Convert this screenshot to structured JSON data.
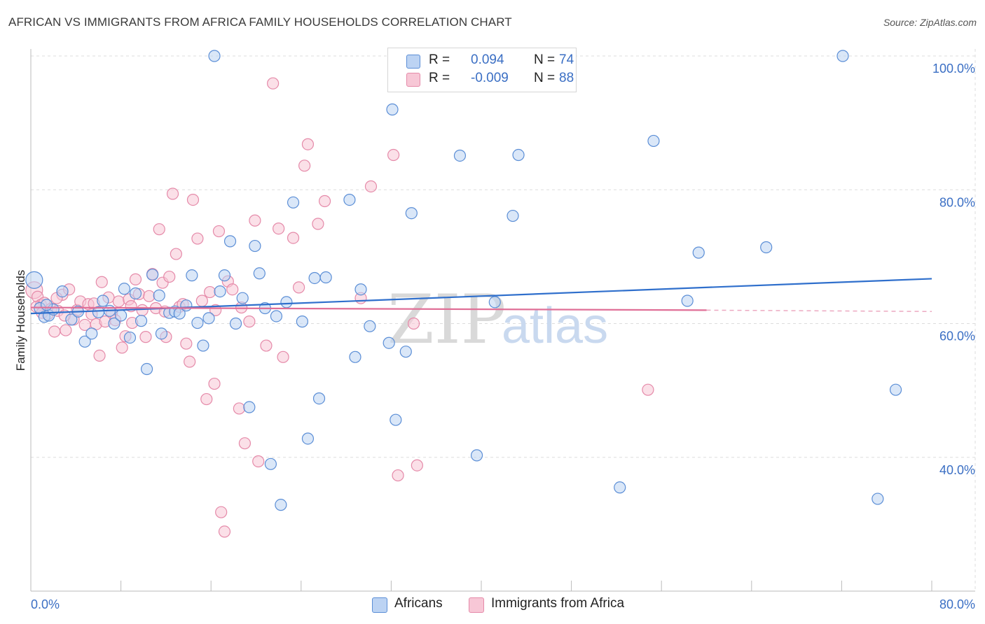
{
  "title": "AFRICAN VS IMMIGRANTS FROM AFRICA FAMILY HOUSEHOLDS CORRELATION CHART",
  "source": "Source: ZipAtlas.com",
  "colors": {
    "blue_fill": "#bcd3f3",
    "blue_stroke": "#5b8ed6",
    "blue_line": "#2f6fcc",
    "pink_fill": "#f7c7d6",
    "pink_stroke": "#e58aa9",
    "pink_line": "#e06f97",
    "grid": "#dddddd",
    "tick_text": "#3b6fc4"
  },
  "legend": {
    "r_label": "R =",
    "n_label": "N =",
    "series": [
      {
        "name": "Africans",
        "r": "0.094",
        "n": "74"
      },
      {
        "name": "Immigrants from Africa",
        "r": "-0.009",
        "n": "88"
      }
    ]
  },
  "watermark": {
    "zip": "ZIP",
    "atlas": "atlas"
  },
  "chart_data": {
    "type": "scatter",
    "title": "AFRICAN VS IMMIGRANTS FROM AFRICA FAMILY HOUSEHOLDS CORRELATION CHART",
    "xlabel": "",
    "ylabel": "Family Households",
    "xlim": [
      0,
      80
    ],
    "ylim": [
      20,
      101
    ],
    "x_tick_labels": [
      "0.0%",
      "80.0%"
    ],
    "y_ticks": [
      40,
      60,
      80,
      100
    ],
    "y_tick_labels": [
      "40.0%",
      "60.0%",
      "80.0%",
      "100.0%"
    ],
    "grid": true,
    "legend_position": "top-center",
    "series": [
      {
        "name": "Africans",
        "trend": {
          "x": [
            0,
            80
          ],
          "y": [
            61.5,
            66.7
          ],
          "style": "solid"
        },
        "points": [
          [
            0.3,
            66.5
          ],
          [
            0.8,
            62.3
          ],
          [
            1.2,
            61.0
          ],
          [
            1.6,
            61.2
          ],
          [
            2.0,
            62.1
          ],
          [
            2.8,
            64.8
          ],
          [
            3.6,
            60.6
          ],
          [
            4.2,
            61.8
          ],
          [
            4.8,
            57.3
          ],
          [
            5.4,
            58.5
          ],
          [
            6.0,
            61.7
          ],
          [
            6.4,
            63.4
          ],
          [
            7.0,
            61.9
          ],
          [
            7.4,
            60.0
          ],
          [
            8.0,
            61.2
          ],
          [
            8.3,
            65.2
          ],
          [
            8.8,
            57.9
          ],
          [
            9.3,
            64.5
          ],
          [
            9.8,
            60.4
          ],
          [
            10.3,
            53.2
          ],
          [
            10.8,
            67.3
          ],
          [
            11.4,
            64.2
          ],
          [
            11.6,
            58.5
          ],
          [
            12.3,
            61.6
          ],
          [
            12.8,
            61.8
          ],
          [
            13.2,
            61.5
          ],
          [
            13.8,
            62.7
          ],
          [
            14.3,
            67.2
          ],
          [
            14.8,
            60.1
          ],
          [
            15.3,
            56.7
          ],
          [
            15.8,
            60.8
          ],
          [
            16.3,
            100.0
          ],
          [
            16.8,
            64.8
          ],
          [
            17.2,
            67.2
          ],
          [
            17.7,
            72.3
          ],
          [
            18.2,
            60.0
          ],
          [
            18.8,
            63.8
          ],
          [
            19.4,
            47.5
          ],
          [
            19.9,
            71.6
          ],
          [
            20.3,
            67.5
          ],
          [
            20.8,
            62.3
          ],
          [
            21.3,
            39.0
          ],
          [
            21.8,
            61.1
          ],
          [
            22.2,
            32.9
          ],
          [
            22.7,
            63.2
          ],
          [
            23.3,
            78.1
          ],
          [
            24.1,
            60.3
          ],
          [
            24.6,
            42.8
          ],
          [
            25.2,
            66.8
          ],
          [
            25.6,
            48.8
          ],
          [
            26.2,
            66.9
          ],
          [
            28.3,
            78.5
          ],
          [
            28.8,
            55.0
          ],
          [
            29.3,
            65.1
          ],
          [
            30.1,
            59.6
          ],
          [
            31.8,
            57.1
          ],
          [
            32.1,
            92.0
          ],
          [
            32.4,
            45.6
          ],
          [
            33.3,
            55.8
          ],
          [
            33.8,
            76.5
          ],
          [
            38.1,
            85.1
          ],
          [
            39.6,
            40.3
          ],
          [
            41.2,
            63.2
          ],
          [
            42.8,
            76.1
          ],
          [
            43.3,
            85.2
          ],
          [
            52.3,
            35.5
          ],
          [
            55.3,
            87.3
          ],
          [
            58.3,
            63.4
          ],
          [
            59.3,
            70.6
          ],
          [
            65.3,
            71.4
          ],
          [
            72.1,
            100.0
          ],
          [
            75.2,
            33.8
          ],
          [
            76.8,
            50.1
          ],
          [
            1.4,
            62.8
          ]
        ]
      },
      {
        "name": "Immigrants from Africa",
        "trend": {
          "x": [
            0,
            60
          ],
          "y": [
            62.4,
            62.0
          ],
          "style": "solid",
          "dashed_extension": {
            "x": [
              60,
              80
            ],
            "y": [
              62.0,
              61.8
            ]
          }
        },
        "points": [
          [
            0.3,
            65.0
          ],
          [
            0.6,
            64.0
          ],
          [
            0.9,
            62.8
          ],
          [
            1.2,
            63.1
          ],
          [
            1.5,
            61.4
          ],
          [
            1.8,
            62.2
          ],
          [
            2.1,
            58.8
          ],
          [
            2.4,
            61.9
          ],
          [
            2.8,
            64.3
          ],
          [
            3.1,
            59.0
          ],
          [
            3.4,
            65.1
          ],
          [
            3.8,
            60.6
          ],
          [
            4.1,
            62.0
          ],
          [
            4.4,
            63.3
          ],
          [
            4.8,
            59.8
          ],
          [
            5.1,
            62.9
          ],
          [
            5.4,
            61.4
          ],
          [
            5.8,
            59.9
          ],
          [
            6.1,
            55.2
          ],
          [
            6.3,
            66.2
          ],
          [
            6.6,
            60.3
          ],
          [
            6.9,
            63.9
          ],
          [
            7.2,
            61.6
          ],
          [
            7.5,
            60.5
          ],
          [
            7.8,
            63.3
          ],
          [
            8.1,
            56.4
          ],
          [
            8.4,
            58.1
          ],
          [
            8.7,
            63.6
          ],
          [
            9.0,
            60.1
          ],
          [
            9.3,
            66.6
          ],
          [
            9.6,
            64.4
          ],
          [
            9.9,
            62.0
          ],
          [
            10.2,
            58.0
          ],
          [
            10.5,
            64.1
          ],
          [
            10.8,
            67.4
          ],
          [
            11.1,
            62.3
          ],
          [
            11.4,
            74.1
          ],
          [
            11.7,
            66.1
          ],
          [
            12.0,
            58.0
          ],
          [
            12.3,
            67.0
          ],
          [
            12.6,
            79.4
          ],
          [
            12.9,
            70.4
          ],
          [
            13.2,
            62.5
          ],
          [
            13.5,
            62.9
          ],
          [
            13.8,
            57.0
          ],
          [
            14.1,
            54.3
          ],
          [
            14.4,
            78.5
          ],
          [
            14.8,
            72.7
          ],
          [
            15.2,
            63.4
          ],
          [
            15.6,
            48.7
          ],
          [
            15.9,
            64.7
          ],
          [
            16.3,
            51.0
          ],
          [
            16.7,
            73.8
          ],
          [
            16.9,
            31.8
          ],
          [
            17.2,
            28.9
          ],
          [
            17.5,
            66.3
          ],
          [
            17.9,
            65.1
          ],
          [
            18.5,
            47.3
          ],
          [
            19.0,
            42.1
          ],
          [
            19.4,
            60.3
          ],
          [
            19.9,
            75.4
          ],
          [
            20.2,
            39.4
          ],
          [
            20.9,
            56.7
          ],
          [
            21.5,
            95.9
          ],
          [
            22.0,
            74.2
          ],
          [
            22.4,
            55.0
          ],
          [
            23.3,
            72.8
          ],
          [
            23.8,
            65.4
          ],
          [
            24.3,
            83.6
          ],
          [
            24.6,
            86.8
          ],
          [
            25.5,
            74.9
          ],
          [
            26.1,
            78.3
          ],
          [
            29.3,
            63.8
          ],
          [
            30.2,
            80.5
          ],
          [
            32.2,
            85.2
          ],
          [
            32.6,
            37.3
          ],
          [
            34.0,
            60.0
          ],
          [
            34.3,
            38.8
          ],
          [
            54.8,
            50.1
          ],
          [
            0.5,
            62.5
          ],
          [
            1.0,
            61.6
          ],
          [
            2.3,
            63.8
          ],
          [
            3.0,
            61.2
          ],
          [
            5.6,
            63.0
          ],
          [
            8.9,
            62.6
          ],
          [
            11.9,
            61.8
          ],
          [
            16.4,
            62.0
          ],
          [
            18.7,
            62.4
          ]
        ]
      }
    ]
  }
}
